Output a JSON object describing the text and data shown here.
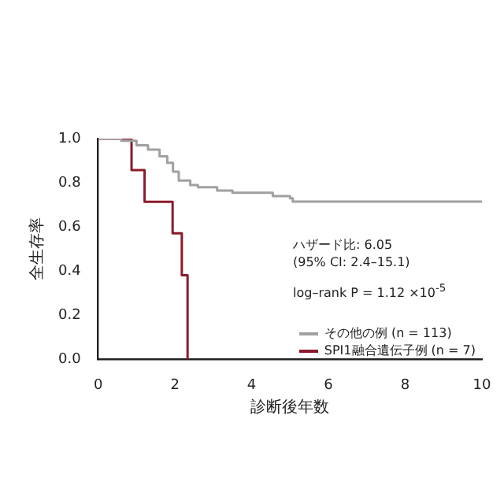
{
  "chart_data": {
    "type": "step",
    "xlabel": "診断後年数",
    "ylabel": "全生存率",
    "xlim": [
      0,
      10
    ],
    "xticks": [
      0,
      2,
      4,
      6,
      8,
      10
    ],
    "ylim": [
      0,
      1
    ],
    "yticks": [
      {
        "value": 0,
        "label": "0.0"
      },
      {
        "value": 0.2,
        "label": "0.2"
      },
      {
        "value": 0.4,
        "label": "0.4"
      },
      {
        "value": 0.6,
        "label": "0.6"
      },
      {
        "value": 0.8,
        "label": "0.8"
      },
      {
        "value": 1,
        "label": "1.0"
      }
    ],
    "grid": false,
    "legend": "bottom right",
    "marker": "none",
    "line_style": "solid",
    "annotations": [
      "ハザード比: 6.05",
      "(95% CI: 2.4–15.1)",
      "log–rank P = 1.12 ×10$^{-5}$"
    ],
    "series": [
      {
        "name": "その他の例 (n = 113)",
        "color": "#a0a0a0",
        "x": [
          0,
          0.6,
          1.0,
          1.3,
          1.6,
          1.8,
          1.95,
          2.1,
          2.4,
          2.6,
          3.1,
          3.5,
          4.55,
          5.0,
          5.07,
          10
        ],
        "values": [
          1,
          0.99,
          0.97,
          0.95,
          0.92,
          0.89,
          0.85,
          0.81,
          0.79,
          0.78,
          0.765,
          0.755,
          0.74,
          0.73,
          0.715,
          0.715
        ]
      },
      {
        "name": "SPI1融合遺伝子例 (n = 7)",
        "color": "#8b1a2b",
        "x": [
          0,
          0.87,
          1.21,
          1.94,
          2.18,
          2.33
        ],
        "values": [
          1,
          0.857,
          0.714,
          0.571,
          0.381,
          0
        ]
      }
    ]
  }
}
